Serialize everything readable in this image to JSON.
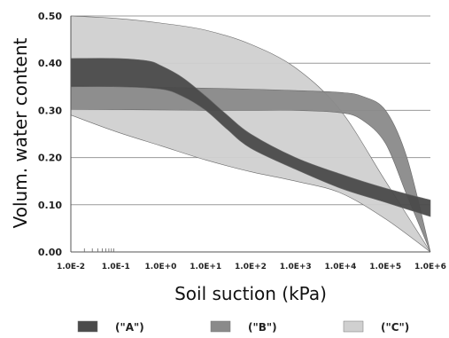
{
  "chart_data": {
    "type": "area",
    "xlabel": "Soil suction (kPa)",
    "ylabel": "Volum. water content",
    "x_scale": "log",
    "xlim": [
      0.01,
      1000000
    ],
    "ylim": [
      0,
      0.5
    ],
    "grid": true,
    "legend_position": "bottom",
    "x_ticks": [
      "1.0E-2",
      "1.0E-1",
      "1.0E+0",
      "1.0E+1",
      "1.0E+2",
      "1.0E+3",
      "1.0E+4",
      "1.0E+5",
      "1.0E+6"
    ],
    "y_ticks": [
      "0.00",
      "0.10",
      "0.20",
      "0.30",
      "0.40",
      "0.50"
    ],
    "series": [
      {
        "name": "(\"C\")",
        "color": "#d0d0d0",
        "upper": [
          [
            0.01,
            0.5
          ],
          [
            0.1,
            0.495
          ],
          [
            1,
            0.485
          ],
          [
            10,
            0.47
          ],
          [
            100,
            0.44
          ],
          [
            1000,
            0.39
          ],
          [
            10000,
            0.3
          ],
          [
            100000,
            0.15
          ],
          [
            1000000,
            0.0
          ]
        ],
        "lower": [
          [
            0.01,
            0.29
          ],
          [
            0.1,
            0.255
          ],
          [
            1,
            0.225
          ],
          [
            10,
            0.195
          ],
          [
            100,
            0.17
          ],
          [
            1000,
            0.15
          ],
          [
            10000,
            0.125
          ],
          [
            100000,
            0.07
          ],
          [
            1000000,
            0.0
          ]
        ]
      },
      {
        "name": "(\"B\")",
        "color": "#8a8a8a",
        "upper": [
          [
            0.01,
            0.352
          ],
          [
            1,
            0.349
          ],
          [
            10,
            0.347
          ],
          [
            100,
            0.345
          ],
          [
            1000,
            0.342
          ],
          [
            10000,
            0.338
          ],
          [
            30000,
            0.33
          ],
          [
            100000,
            0.3
          ],
          [
            300000,
            0.2
          ],
          [
            1000000,
            0.0
          ]
        ],
        "lower": [
          [
            0.01,
            0.302
          ],
          [
            1,
            0.301
          ],
          [
            10,
            0.3
          ],
          [
            100,
            0.3
          ],
          [
            1000,
            0.3
          ],
          [
            10000,
            0.295
          ],
          [
            30000,
            0.28
          ],
          [
            100000,
            0.23
          ],
          [
            300000,
            0.12
          ],
          [
            1000000,
            0.0
          ]
        ]
      },
      {
        "name": "(\"A\")",
        "color": "#4a4a4a",
        "upper": [
          [
            0.01,
            0.41
          ],
          [
            0.1,
            0.41
          ],
          [
            0.5,
            0.405
          ],
          [
            1,
            0.395
          ],
          [
            3,
            0.37
          ],
          [
            10,
            0.33
          ],
          [
            30,
            0.29
          ],
          [
            100,
            0.25
          ],
          [
            1000,
            0.2
          ],
          [
            10000,
            0.165
          ],
          [
            100000,
            0.135
          ],
          [
            1000000,
            0.11
          ]
        ],
        "lower": [
          [
            0.01,
            0.35
          ],
          [
            0.1,
            0.35
          ],
          [
            1,
            0.345
          ],
          [
            3,
            0.33
          ],
          [
            10,
            0.3
          ],
          [
            30,
            0.26
          ],
          [
            100,
            0.22
          ],
          [
            1000,
            0.175
          ],
          [
            10000,
            0.135
          ],
          [
            100000,
            0.105
          ],
          [
            1000000,
            0.075
          ]
        ]
      }
    ],
    "legend": [
      {
        "label": "(\"A\")",
        "color": "#4a4a4a"
      },
      {
        "label": "(\"B\")",
        "color": "#8a8a8a"
      },
      {
        "label": "(\"C\")",
        "color": "#d0d0d0"
      }
    ]
  }
}
